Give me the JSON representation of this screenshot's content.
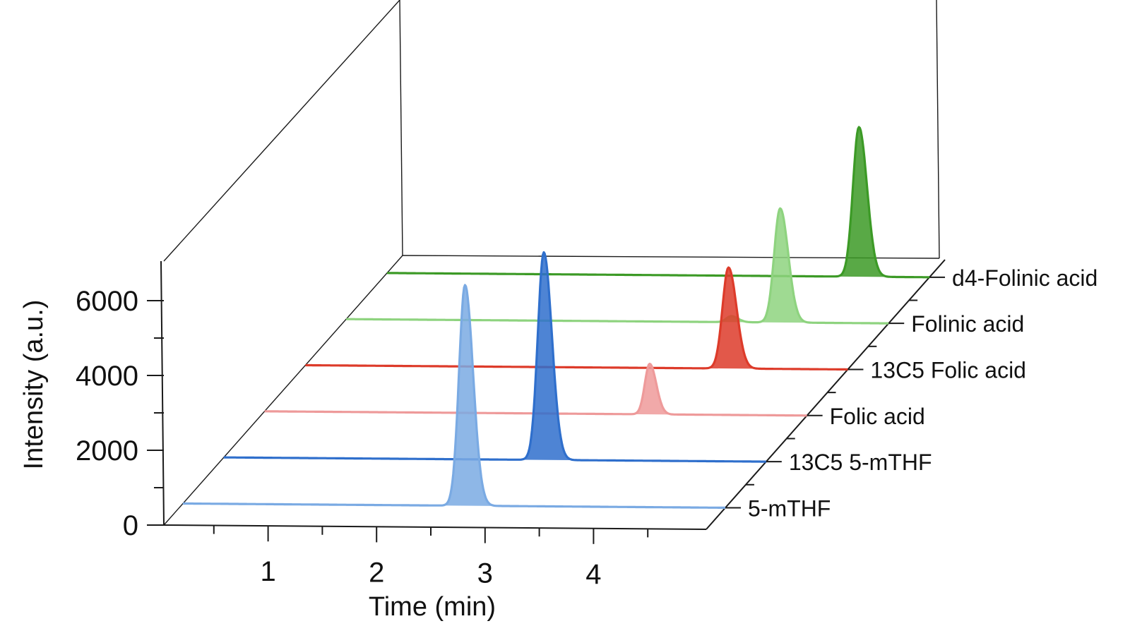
{
  "chart_data": {
    "type": "line",
    "subtype": "3d-waterfall",
    "title": "",
    "xlabel": "Time (min)",
    "ylabel": "Intensity (a.u.)",
    "xlim": [
      0,
      5
    ],
    "ylim": [
      0,
      7000
    ],
    "xticks": [
      1,
      2,
      3,
      4
    ],
    "xtick_labels": [
      "1",
      "2",
      "3",
      "4"
    ],
    "yticks": [
      0,
      2000,
      4000,
      6000
    ],
    "ytick_labels": [
      "0",
      "2000",
      "4000",
      "6000"
    ],
    "grid": false,
    "series": [
      {
        "name": "5-mTHF",
        "color": "#7aaae3",
        "peaks": [
          {
            "time": 2.6,
            "intensity": 5900
          }
        ]
      },
      {
        "name": "13C5 5-mTHF",
        "color": "#2f6fcc",
        "peaks": [
          {
            "time": 2.95,
            "intensity": 5550
          }
        ]
      },
      {
        "name": "Folic acid",
        "color": "#ee9a9a",
        "peaks": [
          {
            "time": 3.55,
            "intensity": 1350
          }
        ]
      },
      {
        "name": "13C5 Folic acid",
        "color": "#dd3b2a",
        "peaks": [
          {
            "time": 3.9,
            "intensity": 2700
          }
        ]
      },
      {
        "name": "Folinic acid",
        "color": "#8ed37f",
        "peaks": [
          {
            "time": 3.55,
            "intensity": 160
          },
          {
            "time": 4.0,
            "intensity": 3050
          }
        ]
      },
      {
        "name": "d4-Folinic acid",
        "color": "#3c9a26",
        "peaks": [
          {
            "time": 4.35,
            "intensity": 4000
          }
        ]
      }
    ]
  }
}
